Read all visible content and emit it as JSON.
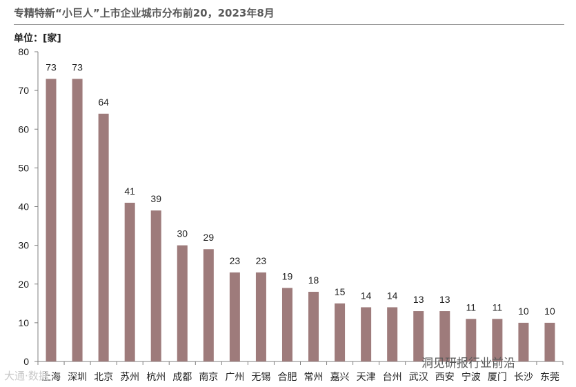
{
  "title": "专精特新“小巨人”上市企业城市分布前20，2023年8月",
  "unit_label": "单位：[家]",
  "watermarks": {
    "left": "大通·数据",
    "right": "洞见研报行业前沿"
  },
  "colors": {
    "bar": "#9e7b7b",
    "axis": "#7f7f7f"
  },
  "chart_data": {
    "type": "bar",
    "title": "专精特新“小巨人”上市企业城市分布前20，2023年8月",
    "ylabel": "单位：[家]",
    "xlabel": "",
    "ylim": [
      0,
      80
    ],
    "yticks": [
      0,
      10,
      20,
      30,
      40,
      50,
      60,
      70,
      80
    ],
    "categories": [
      "上海",
      "深圳",
      "北京",
      "苏州",
      "杭州",
      "成都",
      "南京",
      "广州",
      "无锡",
      "合肥",
      "常州",
      "嘉兴",
      "天津",
      "台州",
      "武汉",
      "西安",
      "宁波",
      "厦门",
      "长沙",
      "东莞"
    ],
    "values": [
      73,
      73,
      64,
      41,
      39,
      30,
      29,
      23,
      23,
      19,
      18,
      15,
      14,
      14,
      13,
      13,
      11,
      11,
      10,
      10
    ],
    "grid": false,
    "legend": "none",
    "data_labels": true
  }
}
